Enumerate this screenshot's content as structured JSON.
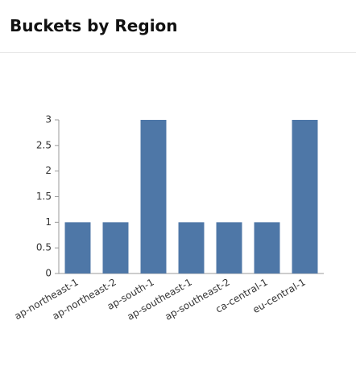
{
  "chart_data": {
    "type": "bar",
    "title": "Buckets by Region",
    "categories": [
      "ap-northeast-1",
      "ap-northeast-2",
      "ap-south-1",
      "ap-southeast-1",
      "ap-southeast-2",
      "ca-central-1",
      "eu-central-1"
    ],
    "values": [
      1,
      1,
      3,
      1,
      1,
      1,
      3
    ],
    "color": "#4e77a7",
    "ylim": [
      0,
      3
    ],
    "yticks": [
      0,
      0.5,
      1,
      1.5,
      2,
      2.5,
      3
    ],
    "grid": false
  }
}
